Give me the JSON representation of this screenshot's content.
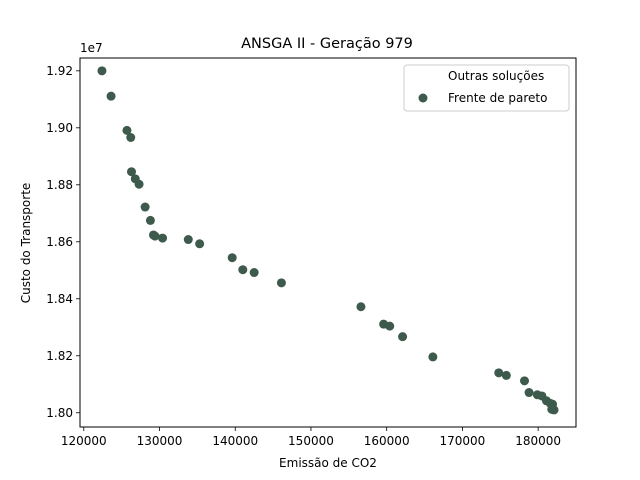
{
  "chart_data": {
    "type": "scatter",
    "title": "ANSGA II - Geração 979",
    "xlabel": "Emissão de CO2",
    "ylabel": "Custo do Transporte",
    "y_offset_label": "1e7",
    "xlim": [
      119500,
      185000
    ],
    "ylim": [
      17.95,
      19.245
    ],
    "xticks": [
      120000,
      130000,
      140000,
      150000,
      160000,
      170000,
      180000
    ],
    "xtick_labels": [
      "120000",
      "130000",
      "140000",
      "150000",
      "160000",
      "170000",
      "180000"
    ],
    "yticks": [
      18.0,
      18.2,
      18.4,
      18.6,
      18.8,
      19.0,
      19.2
    ],
    "ytick_labels": [
      "1.80",
      "1.82",
      "1.84",
      "1.86",
      "1.88",
      "1.90",
      "1.92"
    ],
    "legend_position": "top-right",
    "grid": false,
    "marker_color": "#3d5a4c",
    "series": [
      {
        "name": "Outras soluções",
        "x": [],
        "y": []
      },
      {
        "name": "Frente de pareto",
        "x": [
          122400,
          123600,
          125700,
          126200,
          126300,
          126800,
          127300,
          128100,
          128800,
          129200,
          129400,
          130400,
          133800,
          135300,
          139600,
          141000,
          142500,
          146100,
          156600,
          159600,
          160400,
          162100,
          166100,
          174800,
          175800,
          178200,
          178800,
          179900,
          180500,
          181100,
          181600,
          181900,
          181800,
          182100
        ],
        "y": [
          19.2,
          19.111,
          18.991,
          18.966,
          18.846,
          18.821,
          18.802,
          18.722,
          18.675,
          18.624,
          18.62,
          18.613,
          18.608,
          18.593,
          18.544,
          18.502,
          18.492,
          18.456,
          18.372,
          18.311,
          18.304,
          18.267,
          18.196,
          18.14,
          18.131,
          18.112,
          18.071,
          18.063,
          18.059,
          18.042,
          18.033,
          18.03,
          18.012,
          18.01
        ]
      }
    ]
  }
}
